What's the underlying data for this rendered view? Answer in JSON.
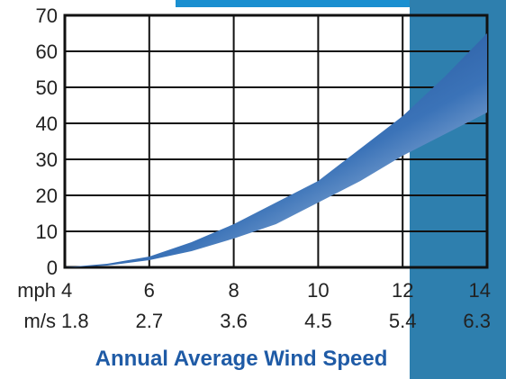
{
  "chart_data": {
    "type": "area",
    "xlabel": "Annual Average Wind Speed",
    "x_unit_labels": [
      "mph",
      "m/s"
    ],
    "x": [
      4,
      6,
      8,
      10,
      12,
      14
    ],
    "x_secondary": [
      "1.8",
      "2.7",
      "3.6",
      "4.5",
      "5.4",
      "6.3"
    ],
    "ylim": [
      0,
      70
    ],
    "yticks": [
      0,
      10,
      20,
      30,
      40,
      50,
      60,
      70
    ],
    "grid": true,
    "series": [
      {
        "points": [
          [
            4,
            0
          ],
          [
            5,
            1
          ],
          [
            6,
            3
          ],
          [
            7,
            7
          ],
          [
            8,
            12
          ],
          [
            9,
            18
          ],
          [
            10,
            24
          ],
          [
            11,
            33
          ],
          [
            12,
            42
          ],
          [
            13,
            53
          ],
          [
            14,
            65
          ]
        ]
      },
      {
        "points": [
          [
            4,
            0
          ],
          [
            5,
            0.5
          ],
          [
            6,
            2
          ],
          [
            7,
            4.5
          ],
          [
            8,
            8
          ],
          [
            9,
            12
          ],
          [
            10,
            18
          ],
          [
            11,
            24
          ],
          [
            12,
            31
          ],
          [
            13,
            37
          ],
          [
            14,
            43
          ]
        ]
      }
    ],
    "colors": {
      "band_dark": "#0a2f78",
      "band_light": "#ffffff",
      "highlight": "#2e7fae",
      "top_bar": "#1a8fd0"
    }
  }
}
